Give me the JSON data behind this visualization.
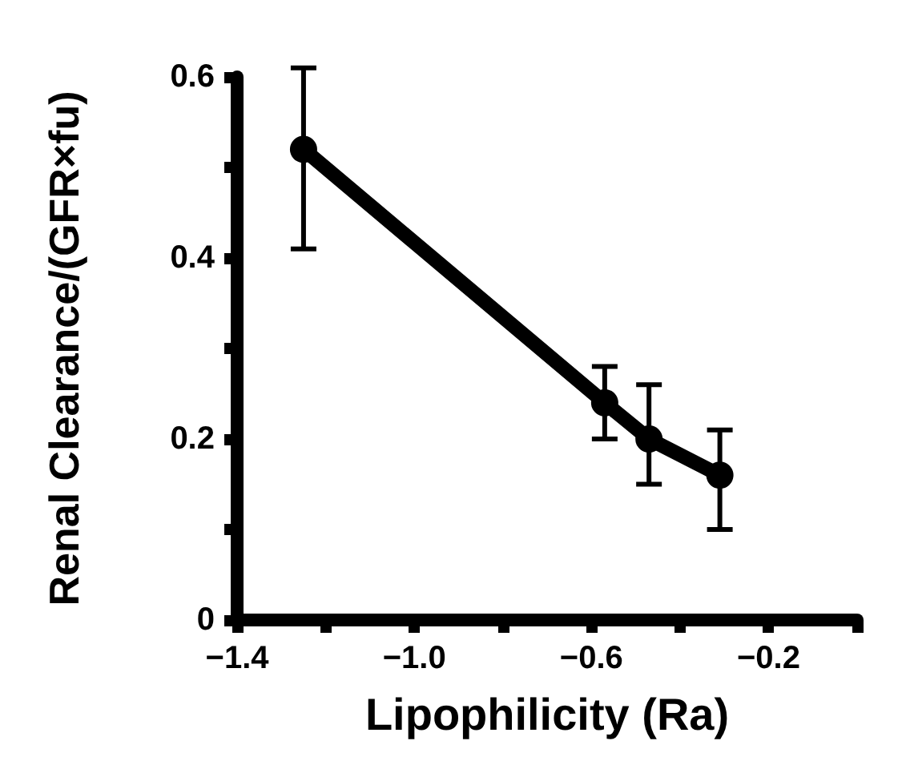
{
  "chart_data": {
    "type": "line",
    "xlabel": "Lipophilicity (Ra)",
    "ylabel": "Renal Clearance/(GFR×fu)",
    "x": [
      -1.25,
      -0.57,
      -0.47,
      -0.31
    ],
    "series": [
      {
        "color": "#000000",
        "values": [
          0.52,
          0.24,
          0.2,
          0.16
        ],
        "errors": [
          [
            0.41,
            0.61
          ],
          [
            0.2,
            0.28
          ],
          [
            0.15,
            0.26
          ],
          [
            0.1,
            0.21
          ]
        ]
      }
    ],
    "marker": "circle",
    "line_style": "solid",
    "grid": false,
    "xlim": [
      -1.4,
      0
    ],
    "xticks": [
      {
        "value": -1.4,
        "label": "−1.4"
      },
      {
        "value": -1.2,
        "label": null
      },
      {
        "value": -1.0,
        "label": "−1.0"
      },
      {
        "value": -0.8,
        "label": null
      },
      {
        "value": -0.6,
        "label": "−0.6"
      },
      {
        "value": -0.4,
        "label": null
      },
      {
        "value": -0.2,
        "label": "−0.2"
      },
      {
        "value": 0,
        "label": null
      }
    ],
    "ylim": [
      0,
      0.6
    ],
    "yticks": [
      0,
      {
        "value": 0.1,
        "label": null
      },
      0.2,
      {
        "value": 0.3,
        "label": null
      },
      0.4,
      {
        "value": 0.5,
        "label": null
      },
      0.6
    ]
  }
}
